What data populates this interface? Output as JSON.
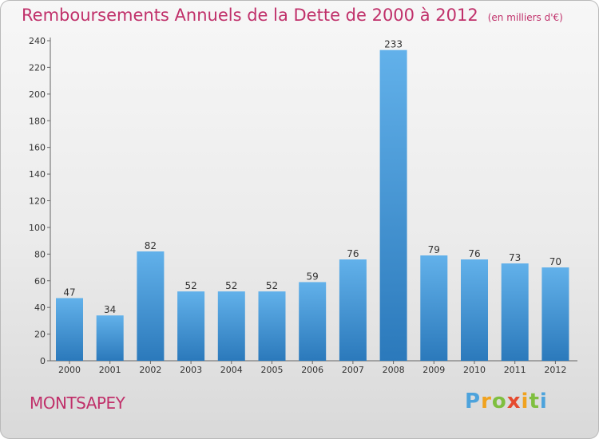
{
  "title": "Remboursements Annuels de la Dette de 2000 à 2012",
  "unit": "(en milliers d'€)",
  "commune": "MONTSAPEY",
  "logo": {
    "letters": [
      "P",
      "r",
      "o",
      "x",
      "i",
      "t",
      "i"
    ],
    "colors": [
      "#4da3dc",
      "#f0a21e",
      "#7fbf3f",
      "#e54a2e",
      "#f0a21e",
      "#7fbf3f",
      "#4da3dc"
    ]
  },
  "colors": {
    "title": "#c0306a",
    "bar_light": "#62b1ea",
    "bar_dark": "#2b79bb"
  },
  "chart_data": {
    "type": "bar",
    "categories": [
      "2000",
      "2001",
      "2002",
      "2003",
      "2004",
      "2005",
      "2006",
      "2007",
      "2008",
      "2009",
      "2010",
      "2011",
      "2012"
    ],
    "values": [
      47,
      34,
      82,
      52,
      52,
      52,
      59,
      76,
      233,
      79,
      76,
      73,
      70
    ],
    "ylim": [
      0,
      240
    ],
    "yticks": [
      0,
      20,
      40,
      60,
      80,
      100,
      120,
      140,
      160,
      180,
      200,
      220,
      240
    ],
    "grid": false,
    "data_labels": true
  }
}
